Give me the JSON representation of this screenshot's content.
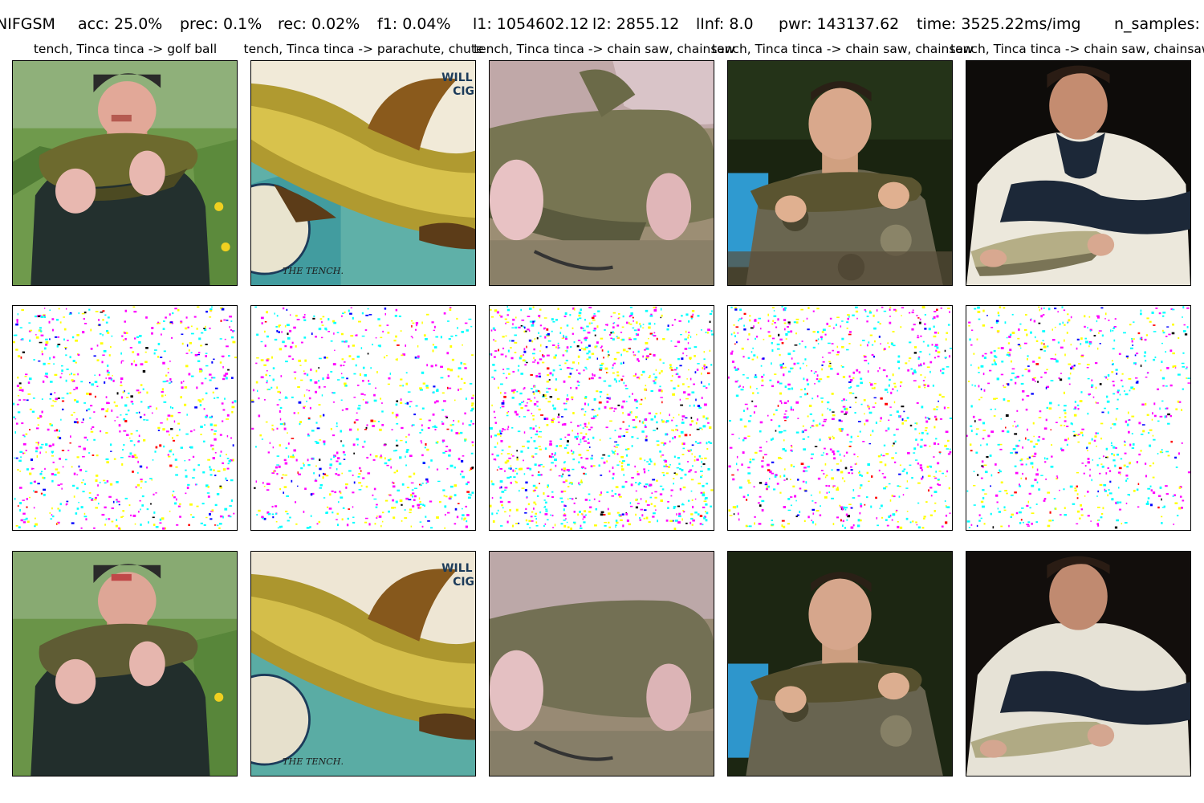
{
  "header": {
    "attack": "NIFGSM",
    "acc": "acc: 25.0%",
    "prec": "prec: 0.1%",
    "rec": "rec: 0.02%",
    "f1": "f1: 0.04%",
    "l1": "l1: 1054602.12",
    "l2": "l2: 2855.12",
    "linf": "lInf: 8.0",
    "pwr": "pwr: 143137.62",
    "time": "time: 3525.22ms/img",
    "n_samples": "n_samples:"
  },
  "columns": [
    {
      "title": "tench, Tinca tinca -> golf ball"
    },
    {
      "title": "tench, Tinca tinca -> parachute, chute"
    },
    {
      "title": "tench, Tinca tinca -> chain saw, chainsaw"
    },
    {
      "title": "tench, Tinca tinca -> chain saw, chainsaw"
    },
    {
      "title": "tench, Tinca tinca -> chain saw, chainsaw"
    }
  ],
  "card_caption": "THE TENCH.",
  "card_brand": "WILL",
  "card_brand_2": "CIG",
  "colors": {
    "noise": [
      "#00ffff",
      "#ff00ff",
      "#ffff00",
      "#0000ff",
      "#ff0000",
      "#000000"
    ]
  }
}
